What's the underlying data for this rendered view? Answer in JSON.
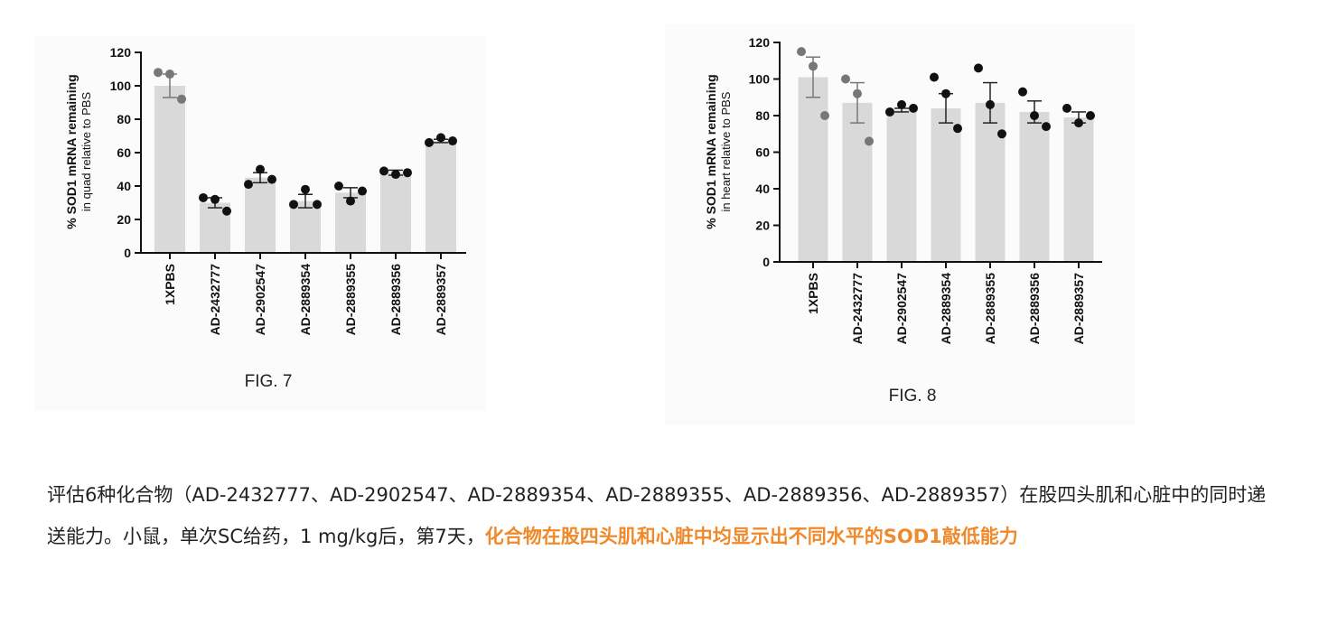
{
  "chart_data": [
    {
      "type": "bar",
      "title": "",
      "ylabel": "% SOD1 mRNA remaining",
      "ylabel_sub": "in quad relative to PBS",
      "xlabel": "",
      "ylim": [
        0,
        120
      ],
      "yticks": [
        0,
        20,
        40,
        60,
        80,
        100,
        120
      ],
      "categories": [
        "1XPBS",
        "AD-2432777",
        "AD-2902547",
        "AD-2889354",
        "AD-2889355",
        "AD-2889356",
        "AD-2889357"
      ],
      "values": [
        100,
        30,
        45,
        31,
        36,
        48,
        67
      ],
      "errors": [
        7,
        3,
        3,
        4,
        3,
        1.5,
        1
      ],
      "points": [
        [
          108,
          107,
          92
        ],
        [
          33,
          32,
          25
        ],
        [
          41,
          50,
          44
        ],
        [
          29,
          38,
          29
        ],
        [
          40,
          31,
          37
        ],
        [
          49,
          47,
          48
        ],
        [
          66,
          69,
          67
        ]
      ],
      "caption": "FIG. 7"
    },
    {
      "type": "bar",
      "title": "",
      "ylabel": "% SOD1 mRNA remaining",
      "ylabel_sub": "in heart relative to PBS",
      "xlabel": "",
      "ylim": [
        0,
        120
      ],
      "yticks": [
        0,
        20,
        40,
        60,
        80,
        100,
        120
      ],
      "categories": [
        "1XPBS",
        "AD-2432777",
        "AD-2902547",
        "AD-2889354",
        "AD-2889355",
        "AD-2889356",
        "AD-2889357"
      ],
      "values": [
        101,
        87,
        83,
        84,
        87,
        82,
        79
      ],
      "errors": [
        11,
        11,
        1,
        8,
        11,
        6,
        3
      ],
      "points": [
        [
          115,
          107,
          80
        ],
        [
          100,
          92,
          66
        ],
        [
          82,
          86,
          84
        ],
        [
          101,
          92,
          73
        ],
        [
          106,
          86,
          70
        ],
        [
          93,
          80,
          74
        ],
        [
          84,
          76,
          80
        ]
      ],
      "caption": "FIG. 8"
    }
  ],
  "description": {
    "normal": "评估6种化合物（AD-2432777、AD-2902547、AD-2889354、AD-2889355、AD-2889356、AD-2889357）在股四头肌和心脏中的同时递送能力。小鼠，单次SC给药，1 mg/kg后，第7天，",
    "highlight": "化合物在股四头肌和心脏中均显示出不同水平的SOD1敲低能力"
  },
  "colors": {
    "bar": "#d9d9d9",
    "axis": "#111111",
    "point_dark": "#111111",
    "point_gray": "#777777",
    "highlight": "#f0892b"
  }
}
